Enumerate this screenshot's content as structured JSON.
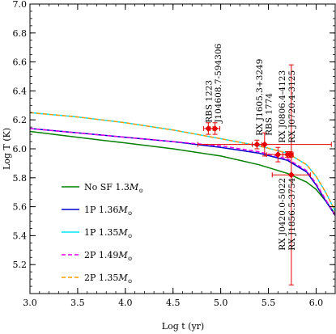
{
  "chart_data": {
    "type": "line",
    "xlabel": "Log t (yr)",
    "ylabel": "Log T (K)",
    "xlim": [
      3.0,
      6.2
    ],
    "ylim": [
      5.0,
      7.0
    ],
    "xticks": [
      3.0,
      3.5,
      4.0,
      4.5,
      5.0,
      5.5,
      6.0
    ],
    "xtick_labels": [
      "3.0",
      "3.5",
      "4.0",
      "4.5",
      "5.0",
      "5.5",
      "6.0"
    ],
    "yticks": [
      5.2,
      5.4,
      5.6,
      5.8,
      6.0,
      6.2,
      6.4,
      6.6,
      6.8,
      7.0
    ],
    "ytick_labels": [
      "5.2",
      "5.4",
      "5.6",
      "5.8",
      "6.0",
      "6.2",
      "6.4",
      "6.6",
      "6.8",
      "7.0"
    ],
    "legend_position": "bottom-left",
    "series": [
      {
        "name": "No SF 1.3M",
        "name_main": "No SF 1.3",
        "name_sub": "⊙",
        "color": "#008000",
        "dash": "solid",
        "x": [
          3.0,
          3.5,
          4.0,
          4.5,
          5.0,
          5.4,
          5.7,
          5.9,
          6.0,
          6.1,
          6.2
        ],
        "y": [
          6.12,
          6.08,
          6.04,
          6.0,
          5.95,
          5.89,
          5.83,
          5.77,
          5.72,
          5.64,
          5.55
        ]
      },
      {
        "name": "1P 1.36M",
        "name_main": "1P 1.36",
        "name_sub": "⊙",
        "color": "#0000cc",
        "dash": "solid",
        "x": [
          3.0,
          3.5,
          4.0,
          4.5,
          5.0,
          5.4,
          5.7,
          5.9,
          6.0,
          6.1,
          6.2
        ],
        "y": [
          6.14,
          6.11,
          6.08,
          6.05,
          6.01,
          5.97,
          5.92,
          5.84,
          5.75,
          5.64,
          5.54
        ]
      },
      {
        "name": "1P 1.35M",
        "name_main": "1P 1.35",
        "name_sub": "⊙",
        "color": "#00e5ff",
        "dash": "solid",
        "x": [
          3.0,
          3.5,
          4.0,
          4.5,
          5.0,
          5.4,
          5.7,
          5.9,
          6.0,
          6.1,
          6.2
        ],
        "y": [
          6.25,
          6.22,
          6.18,
          6.13,
          6.07,
          6.02,
          5.97,
          5.89,
          5.81,
          5.7,
          5.57
        ]
      },
      {
        "name": "2P 1.49M",
        "name_main": "2P 1.49",
        "name_sub": "⊙",
        "color": "#e600e6",
        "dash": "dashed",
        "x": [
          3.0,
          3.5,
          4.0,
          4.5,
          5.0,
          5.4,
          5.7,
          5.9,
          6.0,
          6.1,
          6.2
        ],
        "y": [
          6.14,
          6.11,
          6.08,
          6.05,
          6.02,
          5.98,
          5.93,
          5.85,
          5.76,
          5.65,
          5.54
        ]
      },
      {
        "name": "2P 1.35M",
        "name_main": "2P 1.35",
        "name_sub": "⊙",
        "color": "#ff9900",
        "dash": "dashed",
        "x": [
          3.0,
          3.5,
          4.0,
          4.5,
          5.0,
          5.4,
          5.7,
          5.9,
          6.0,
          6.1,
          6.2
        ],
        "y": [
          6.25,
          6.22,
          6.18,
          6.13,
          6.07,
          6.02,
          5.97,
          5.89,
          5.81,
          5.7,
          5.57
        ]
      }
    ],
    "observations": {
      "color": "#e60000",
      "points": [
        {
          "x": 4.87,
          "y": 6.14,
          "xerr": 0.05,
          "yerr": 0.04
        },
        {
          "x": 4.94,
          "y": 6.14,
          "xerr": 0.05,
          "yerr": 0.04
        },
        {
          "x": 5.38,
          "y": 6.03,
          "xerr": 0.05,
          "yerr": 0.03
        },
        {
          "x": 5.46,
          "y": 6.03,
          "xerr": 0.7,
          "yerr": 0.08
        },
        {
          "x": 5.6,
          "y": 5.96,
          "xerr": 0.12,
          "yerr": 0.05
        },
        {
          "x": 5.7,
          "y": 5.96,
          "xerr": 0.05,
          "yerr": 0.02
        },
        {
          "x": 5.73,
          "y": 5.96,
          "xerr": 0.03,
          "yerr": 0.02
        },
        {
          "x": 5.74,
          "y": 5.82,
          "xerr": 0.2,
          "yerr": 0.76
        }
      ]
    },
    "annotations": [
      {
        "text": "RBS 1223",
        "x": 4.87,
        "y": 6.18
      },
      {
        "text": "J104608.7-594306",
        "x": 4.97,
        "y": 6.18
      },
      {
        "text": "RX J1605.3+3249",
        "x": 5.4,
        "y": 6.09
      },
      {
        "text": "RBS 1774",
        "x": 5.5,
        "y": 6.09
      },
      {
        "text": "RX J0806.4-4123",
        "x": 5.64,
        "y": 6.04
      },
      {
        "text": "RX J0720.4-3125",
        "x": 5.74,
        "y": 6.04
      },
      {
        "text": "RX J0420.0-5022",
        "x": 5.64,
        "y": 5.8
      },
      {
        "text": "RX J1856.5-3754",
        "x": 5.74,
        "y": 5.8
      }
    ]
  }
}
